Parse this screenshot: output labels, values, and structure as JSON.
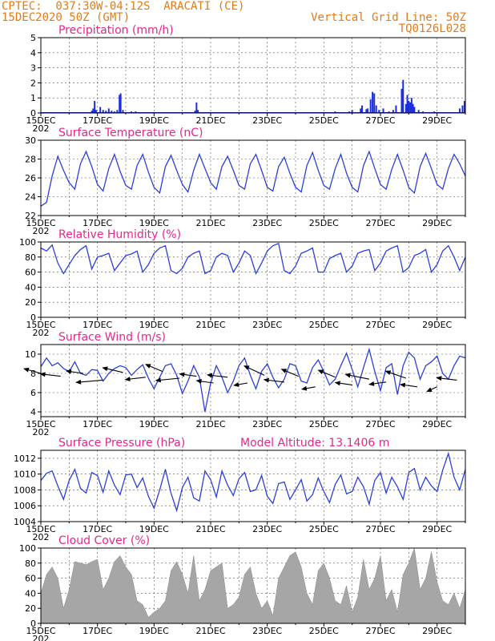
{
  "header": {
    "line1_left": "CPTEC:  037:30W-04:12S  ARACATI (CE)",
    "line2_left": "15DEC2020 50Z (GMT)",
    "line1_right": "Vertical Grid Line: 50Z",
    "line2_right": "TQ0126L028"
  },
  "date_ticks": [
    "15DEC",
    "17DEC",
    "19DEC",
    "21DEC",
    "23DEC",
    "25DEC",
    "27DEC",
    "29DEC"
  ],
  "year_stub": "202",
  "colors": {
    "header": "#e07b1a",
    "title": "#e8258a",
    "line": "#2b3fe0",
    "bars": "#1a2ee0",
    "cloud": "#a6a6a6",
    "wind_arrow": "#000000"
  },
  "chart_data": [
    {
      "type": "bar",
      "title": "Precipitation (mm/h)",
      "x_range_days": [
        15,
        30
      ],
      "ylim": [
        0,
        5
      ],
      "yticks": [
        "0",
        "1",
        "2",
        "3",
        "4",
        "5"
      ],
      "x": [
        15.05,
        15.3,
        16.8,
        16.85,
        16.9,
        16.95,
        17.1,
        17.2,
        17.3,
        17.4,
        17.5,
        17.6,
        17.7,
        17.78,
        17.82,
        17.9,
        18.2,
        18.35,
        20.45,
        20.5,
        20.55,
        25.4,
        25.9,
        26.0,
        26.3,
        26.35,
        26.5,
        26.55,
        26.65,
        26.72,
        26.78,
        26.85,
        26.95,
        27.1,
        27.3,
        27.45,
        27.55,
        27.75,
        27.8,
        27.9,
        27.95,
        28.0,
        28.05,
        28.1,
        28.15,
        28.2,
        28.35,
        28.5,
        28.9,
        29.8,
        29.9,
        29.97
      ],
      "values": [
        0.05,
        0.05,
        0.15,
        0.3,
        0.8,
        0.2,
        0.4,
        0.2,
        0.15,
        0.3,
        0.15,
        0.1,
        0.2,
        1.2,
        1.3,
        0.2,
        0.1,
        0.1,
        0.15,
        0.7,
        0.2,
        0.1,
        0.1,
        0.2,
        0.3,
        0.5,
        0.25,
        0.3,
        0.9,
        1.4,
        1.3,
        0.5,
        0.2,
        0.3,
        0.1,
        0.2,
        0.5,
        1.6,
        2.2,
        0.6,
        1.2,
        0.8,
        0.7,
        1.0,
        0.6,
        0.4,
        0.2,
        0.1,
        0.1,
        0.3,
        0.5,
        0.8
      ]
    },
    {
      "type": "line",
      "title": "Surface Temperature (nC)",
      "x_range_days": [
        15,
        30
      ],
      "ylim": [
        22,
        30
      ],
      "yticks": [
        "22",
        "24",
        "26",
        "28",
        "30"
      ],
      "series": [
        {
          "x": [
            15.0,
            15.2,
            15.4,
            15.6,
            15.8,
            16.0,
            16.2,
            16.4,
            16.6,
            16.8,
            17.0,
            17.2,
            17.4,
            17.6,
            17.8,
            18.0,
            18.2,
            18.4,
            18.6,
            18.8,
            19.0,
            19.2,
            19.4,
            19.6,
            19.8,
            20.0,
            20.2,
            20.4,
            20.6,
            20.8,
            21.0,
            21.2,
            21.4,
            21.6,
            21.8,
            22.0,
            22.2,
            22.4,
            22.6,
            22.8,
            23.0,
            23.2,
            23.4,
            23.6,
            23.8,
            24.0,
            24.2,
            24.4,
            24.6,
            24.8,
            25.0,
            25.2,
            25.4,
            25.6,
            25.8,
            26.0,
            26.2,
            26.4,
            26.6,
            26.8,
            27.0,
            27.2,
            27.4,
            27.6,
            27.8,
            28.0,
            28.2,
            28.4,
            28.6,
            28.8,
            29.0,
            29.2,
            29.4,
            29.6,
            29.8,
            30.0
          ],
          "values": [
            23.0,
            23.4,
            26.2,
            28.3,
            26.8,
            25.5,
            24.8,
            27.5,
            28.8,
            27.2,
            25.3,
            24.6,
            27.0,
            28.5,
            26.7,
            25.2,
            24.8,
            27.3,
            28.5,
            26.6,
            25.0,
            24.4,
            27.2,
            28.4,
            26.8,
            25.3,
            24.5,
            26.8,
            28.5,
            27.0,
            25.5,
            24.8,
            27.2,
            28.3,
            26.8,
            25.2,
            24.8,
            27.5,
            28.5,
            26.8,
            25.0,
            24.6,
            27.2,
            28.2,
            26.5,
            25.0,
            24.5,
            27.3,
            28.7,
            26.8,
            25.2,
            24.8,
            27.0,
            28.5,
            26.5,
            25.0,
            24.5,
            27.3,
            28.8,
            27.0,
            25.3,
            24.8,
            26.9,
            28.5,
            26.8,
            25.0,
            24.4,
            27.2,
            28.6,
            27.0,
            25.3,
            24.8,
            27.0,
            28.5,
            27.5,
            26.2
          ]
        }
      ]
    },
    {
      "type": "line",
      "title": "Relative Humidity (%)",
      "x_range_days": [
        15,
        30
      ],
      "ylim": [
        0,
        100
      ],
      "yticks": [
        "0",
        "20",
        "40",
        "60",
        "80",
        "100"
      ],
      "series": [
        {
          "x": [
            15.0,
            15.2,
            15.4,
            15.6,
            15.8,
            16.0,
            16.2,
            16.4,
            16.6,
            16.8,
            17.0,
            17.2,
            17.4,
            17.6,
            17.8,
            18.0,
            18.2,
            18.4,
            18.6,
            18.8,
            19.0,
            19.2,
            19.4,
            19.6,
            19.8,
            20.0,
            20.2,
            20.4,
            20.6,
            20.8,
            21.0,
            21.2,
            21.4,
            21.6,
            21.8,
            22.0,
            22.2,
            22.4,
            22.6,
            22.8,
            23.0,
            23.2,
            23.4,
            23.6,
            23.8,
            24.0,
            24.2,
            24.4,
            24.6,
            24.8,
            25.0,
            25.2,
            25.4,
            25.6,
            25.8,
            26.0,
            26.2,
            26.4,
            26.6,
            26.8,
            27.0,
            27.2,
            27.4,
            27.6,
            27.8,
            28.0,
            28.2,
            28.4,
            28.6,
            28.8,
            29.0,
            29.2,
            29.4,
            29.6,
            29.8,
            30.0
          ],
          "values": [
            92,
            88,
            96,
            72,
            58,
            70,
            82,
            90,
            95,
            64,
            80,
            82,
            85,
            62,
            72,
            82,
            84,
            88,
            60,
            70,
            85,
            92,
            95,
            62,
            58,
            65,
            80,
            85,
            88,
            58,
            62,
            80,
            85,
            82,
            60,
            72,
            88,
            82,
            58,
            72,
            88,
            95,
            98,
            62,
            58,
            68,
            85,
            88,
            92,
            60,
            60,
            78,
            82,
            85,
            60,
            68,
            85,
            88,
            90,
            62,
            72,
            88,
            92,
            95,
            60,
            66,
            82,
            85,
            90,
            60,
            70,
            88,
            95,
            80,
            62,
            80
          ]
        }
      ]
    },
    {
      "type": "line",
      "title": "Surface Wind (m/s)",
      "x_range_days": [
        15,
        30
      ],
      "ylim": [
        3.5,
        11
      ],
      "yticks": [
        "4",
        "6",
        "8",
        "10"
      ],
      "series": [
        {
          "x": [
            15.0,
            15.2,
            15.4,
            15.6,
            15.8,
            16.0,
            16.2,
            16.4,
            16.6,
            16.8,
            17.0,
            17.2,
            17.4,
            17.6,
            17.8,
            18.0,
            18.2,
            18.4,
            18.6,
            18.8,
            19.0,
            19.2,
            19.4,
            19.6,
            19.8,
            20.0,
            20.2,
            20.4,
            20.6,
            20.8,
            21.0,
            21.2,
            21.4,
            21.6,
            21.8,
            22.0,
            22.2,
            22.4,
            22.6,
            22.8,
            23.0,
            23.2,
            23.4,
            23.6,
            23.8,
            24.0,
            24.2,
            24.4,
            24.6,
            24.8,
            25.0,
            25.2,
            25.4,
            25.6,
            25.8,
            26.0,
            26.2,
            26.4,
            26.6,
            26.8,
            27.0,
            27.2,
            27.4,
            27.6,
            27.8,
            28.0,
            28.2,
            28.4,
            28.6,
            28.8,
            29.0,
            29.2,
            29.4,
            29.6,
            29.8,
            30.0
          ],
          "values": [
            8.7,
            9.6,
            8.8,
            9.1,
            8.5,
            8.2,
            9.2,
            8.0,
            7.8,
            8.4,
            8.3,
            7.2,
            8.0,
            8.5,
            8.8,
            8.6,
            7.8,
            8.4,
            8.9,
            7.5,
            6.4,
            7.6,
            8.8,
            9.0,
            7.8,
            5.9,
            7.2,
            8.8,
            7.6,
            4.0,
            7.0,
            8.8,
            7.6,
            6.0,
            7.2,
            8.8,
            9.6,
            7.8,
            6.4,
            8.2,
            9.0,
            7.6,
            6.5,
            7.4,
            9.0,
            8.8,
            7.2,
            7.0,
            8.6,
            9.4,
            8.2,
            6.8,
            7.4,
            8.8,
            10.1,
            8.4,
            6.6,
            8.6,
            10.5,
            8.2,
            6.2,
            8.6,
            9.0,
            5.8,
            8.8,
            10.2,
            9.6,
            7.4,
            8.8,
            9.2,
            9.8,
            8.0,
            7.4,
            8.8,
            9.8,
            9.6
          ]
        }
      ],
      "vectors": {
        "x": [
          15.0,
          15.7,
          16.5,
          17.2,
          17.9,
          18.7,
          19.3,
          19.9,
          20.5,
          21.1,
          21.6,
          22.3,
          22.9,
          23.6,
          24.1,
          24.7,
          25.4,
          26.0,
          26.6,
          27.2,
          27.9,
          28.3,
          29.0,
          29.7
        ],
        "y": [
          8.0,
          7.7,
          8.0,
          7.3,
          8.1,
          7.6,
          8.2,
          7.5,
          7.7,
          7.0,
          7.6,
          7.0,
          7.8,
          7.1,
          7.7,
          6.6,
          7.6,
          6.8,
          7.4,
          7.1,
          7.5,
          6.6,
          6.6,
          7.3
        ],
        "u": [
          -5,
          -6,
          -5,
          -8,
          -6,
          -6,
          -5,
          -7,
          -5,
          -5,
          -6,
          -4,
          -6,
          -6,
          -5,
          -4,
          -5,
          -5,
          -7,
          -5,
          -6,
          -5,
          -3,
          -6
        ],
        "v": [
          2,
          1,
          1,
          -1,
          2,
          -1,
          3,
          -1,
          1,
          1,
          1,
          -1,
          4,
          1,
          3,
          -1,
          3,
          1,
          2,
          -1,
          3,
          1,
          -2,
          1
        ]
      }
    },
    {
      "type": "line",
      "title": "Surface Pressure (hPa)",
      "annotation": "Model Altitude: 13.1406 m",
      "x_range_days": [
        15,
        30
      ],
      "ylim": [
        1004,
        1013
      ],
      "yticks": [
        "1004",
        "1006",
        "1008",
        "1010",
        "1012"
      ],
      "series": [
        {
          "x": [
            15.0,
            15.2,
            15.4,
            15.6,
            15.8,
            16.0,
            16.2,
            16.4,
            16.6,
            16.8,
            17.0,
            17.2,
            17.4,
            17.6,
            17.8,
            18.0,
            18.2,
            18.4,
            18.6,
            18.8,
            19.0,
            19.2,
            19.4,
            19.6,
            19.8,
            20.0,
            20.2,
            20.4,
            20.6,
            20.8,
            21.0,
            21.2,
            21.4,
            21.6,
            21.8,
            22.0,
            22.2,
            22.4,
            22.6,
            22.8,
            23.0,
            23.2,
            23.4,
            23.6,
            23.8,
            24.0,
            24.2,
            24.4,
            24.6,
            24.8,
            25.0,
            25.2,
            25.4,
            25.6,
            25.8,
            26.0,
            26.2,
            26.4,
            26.6,
            26.8,
            27.0,
            27.2,
            27.4,
            27.6,
            27.8,
            28.0,
            28.2,
            28.4,
            28.6,
            28.8,
            29.0,
            29.2,
            29.4,
            29.6,
            29.8,
            30.0
          ],
          "values": [
            1009.2,
            1010.1,
            1010.4,
            1008.5,
            1006.8,
            1009.2,
            1010.6,
            1008.2,
            1007.6,
            1010.2,
            1009.8,
            1007.7,
            1010.4,
            1008.6,
            1007.4,
            1009.9,
            1010.0,
            1008.3,
            1009.5,
            1007.2,
            1005.7,
            1008.0,
            1010.6,
            1007.6,
            1005.4,
            1008.3,
            1009.6,
            1007.0,
            1006.6,
            1010.4,
            1009.3,
            1007.1,
            1010.4,
            1008.6,
            1007.3,
            1009.4,
            1010.2,
            1007.8,
            1008.0,
            1009.8,
            1007.2,
            1006.3,
            1008.8,
            1009.0,
            1006.8,
            1008.0,
            1009.3,
            1006.6,
            1007.4,
            1009.5,
            1007.8,
            1006.4,
            1008.7,
            1009.9,
            1007.5,
            1007.8,
            1009.6,
            1008.4,
            1006.2,
            1009.2,
            1010.2,
            1007.6,
            1009.6,
            1008.4,
            1006.8,
            1010.2,
            1010.7,
            1008.0,
            1009.6,
            1008.5,
            1007.8,
            1010.5,
            1012.6,
            1009.6,
            1008.0,
            1010.6
          ]
        }
      ]
    },
    {
      "type": "area",
      "title": "Cloud Cover (%)",
      "x_range_days": [
        15,
        30
      ],
      "ylim": [
        0,
        100
      ],
      "yticks": [
        "0",
        "20",
        "40",
        "60",
        "80",
        "100"
      ],
      "series": [
        {
          "x": [
            15.0,
            15.2,
            15.4,
            15.6,
            15.8,
            16.0,
            16.2,
            16.4,
            16.6,
            16.8,
            17.0,
            17.2,
            17.4,
            17.6,
            17.8,
            18.0,
            18.2,
            18.4,
            18.6,
            18.8,
            19.0,
            19.2,
            19.4,
            19.6,
            19.8,
            20.0,
            20.2,
            20.4,
            20.6,
            20.8,
            21.0,
            21.2,
            21.4,
            21.6,
            21.8,
            22.0,
            22.2,
            22.4,
            22.6,
            22.8,
            23.0,
            23.2,
            23.4,
            23.6,
            23.8,
            24.0,
            24.2,
            24.4,
            24.6,
            24.8,
            25.0,
            25.2,
            25.4,
            25.6,
            25.8,
            26.0,
            26.2,
            26.4,
            26.6,
            26.8,
            27.0,
            27.2,
            27.4,
            27.6,
            27.8,
            28.0,
            28.2,
            28.4,
            28.6,
            28.8,
            29.0,
            29.2,
            29.4,
            29.6,
            29.8,
            30.0
          ],
          "values": [
            40,
            65,
            75,
            60,
            20,
            45,
            82,
            80,
            78,
            82,
            85,
            45,
            60,
            82,
            90,
            75,
            65,
            30,
            25,
            8,
            15,
            20,
            30,
            70,
            82,
            65,
            40,
            90,
            30,
            45,
            70,
            75,
            80,
            20,
            25,
            35,
            65,
            75,
            40,
            20,
            30,
            10,
            60,
            75,
            90,
            95,
            75,
            40,
            25,
            70,
            80,
            60,
            30,
            25,
            50,
            15,
            35,
            85,
            45,
            60,
            90,
            30,
            45,
            15,
            65,
            80,
            100,
            45,
            60,
            95,
            55,
            30,
            25,
            40,
            20,
            45
          ]
        }
      ]
    }
  ]
}
